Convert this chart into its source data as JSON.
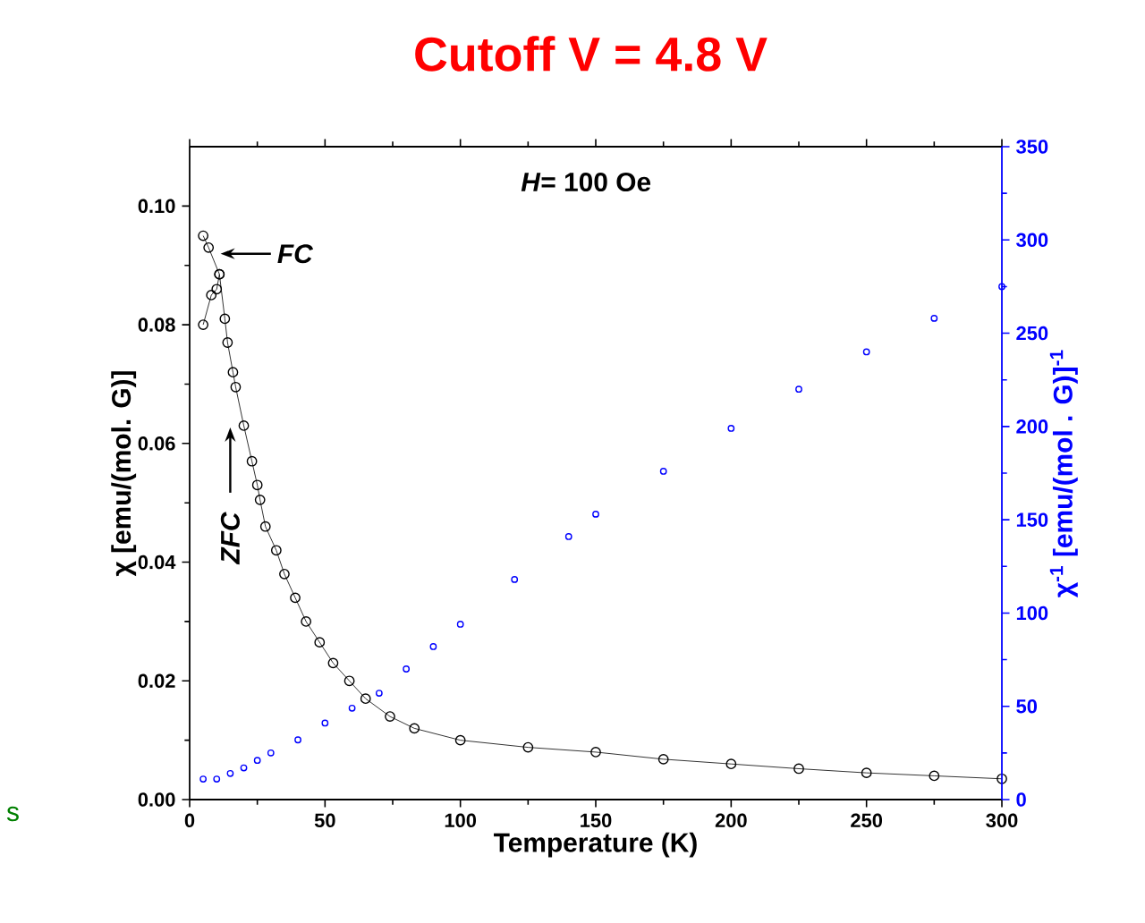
{
  "chart_data": {
    "type": "scatter",
    "title": "Cutoff V = 4.8 V",
    "xlabel": "Temperature (K)",
    "ylabel": "χ [emu/(mol. G)]",
    "y2label": "χ$^{-1}$ [emu/(mol . G)]$^{-1}$",
    "xlim": [
      0,
      300
    ],
    "xticks": [
      0,
      50,
      100,
      150,
      200,
      250,
      300
    ],
    "ylim": [
      0,
      0.11
    ],
    "yticks": [
      {
        "value": 0,
        "label": "0.00"
      },
      {
        "value": 0.02,
        "label": "0.02"
      },
      {
        "value": 0.04,
        "label": "0.04"
      },
      {
        "value": 0.06,
        "label": "0.06"
      },
      {
        "value": 0.08,
        "label": "0.08"
      },
      {
        "value": 0.1,
        "label": "0.10"
      }
    ],
    "y2lim": [
      0,
      350
    ],
    "y2ticks": [
      0,
      50,
      100,
      150,
      200,
      250,
      300,
      350
    ],
    "marker": "circle",
    "grid": false,
    "series": [
      {
        "type": "line",
        "color": "#000000",
        "x": [
          5,
          7,
          11,
          13,
          14,
          16,
          17,
          20,
          23,
          25,
          26,
          28,
          32,
          35,
          39,
          43,
          48,
          53,
          59,
          65,
          74,
          83,
          100,
          125,
          150,
          175,
          200,
          225,
          250,
          275,
          300
        ],
        "values": [
          0.095,
          0.093,
          0.0885,
          0.081,
          0.077,
          0.072,
          0.0695,
          0.063,
          0.057,
          0.053,
          0.0505,
          0.046,
          0.042,
          0.038,
          0.034,
          0.03,
          0.0265,
          0.023,
          0.02,
          0.017,
          0.014,
          0.012,
          0.01,
          0.0088,
          0.008,
          0.0068,
          0.006,
          0.0052,
          0.0045,
          0.004,
          0.0035
        ]
      },
      {
        "type": "line",
        "color": "#000000",
        "x": [
          5,
          8,
          10,
          11
        ],
        "values": [
          0.08,
          0.085,
          0.086,
          0.0885
        ]
      },
      {
        "color": "#0000ff",
        "axis": "y2",
        "x": [
          5,
          10,
          15,
          20,
          25,
          30,
          40,
          50,
          60,
          70,
          80,
          90,
          100,
          120,
          140,
          150,
          175,
          200,
          225,
          250,
          275,
          300
        ],
        "values": [
          11,
          11,
          14,
          17,
          21,
          25,
          32,
          41,
          49,
          57,
          70,
          82,
          94,
          118,
          141,
          153,
          176,
          199,
          220,
          240,
          258,
          275
        ]
      }
    ],
    "annotations": [
      "FC",
      "ZFC",
      "*H*= 100 Oe",
      "s"
    ]
  }
}
